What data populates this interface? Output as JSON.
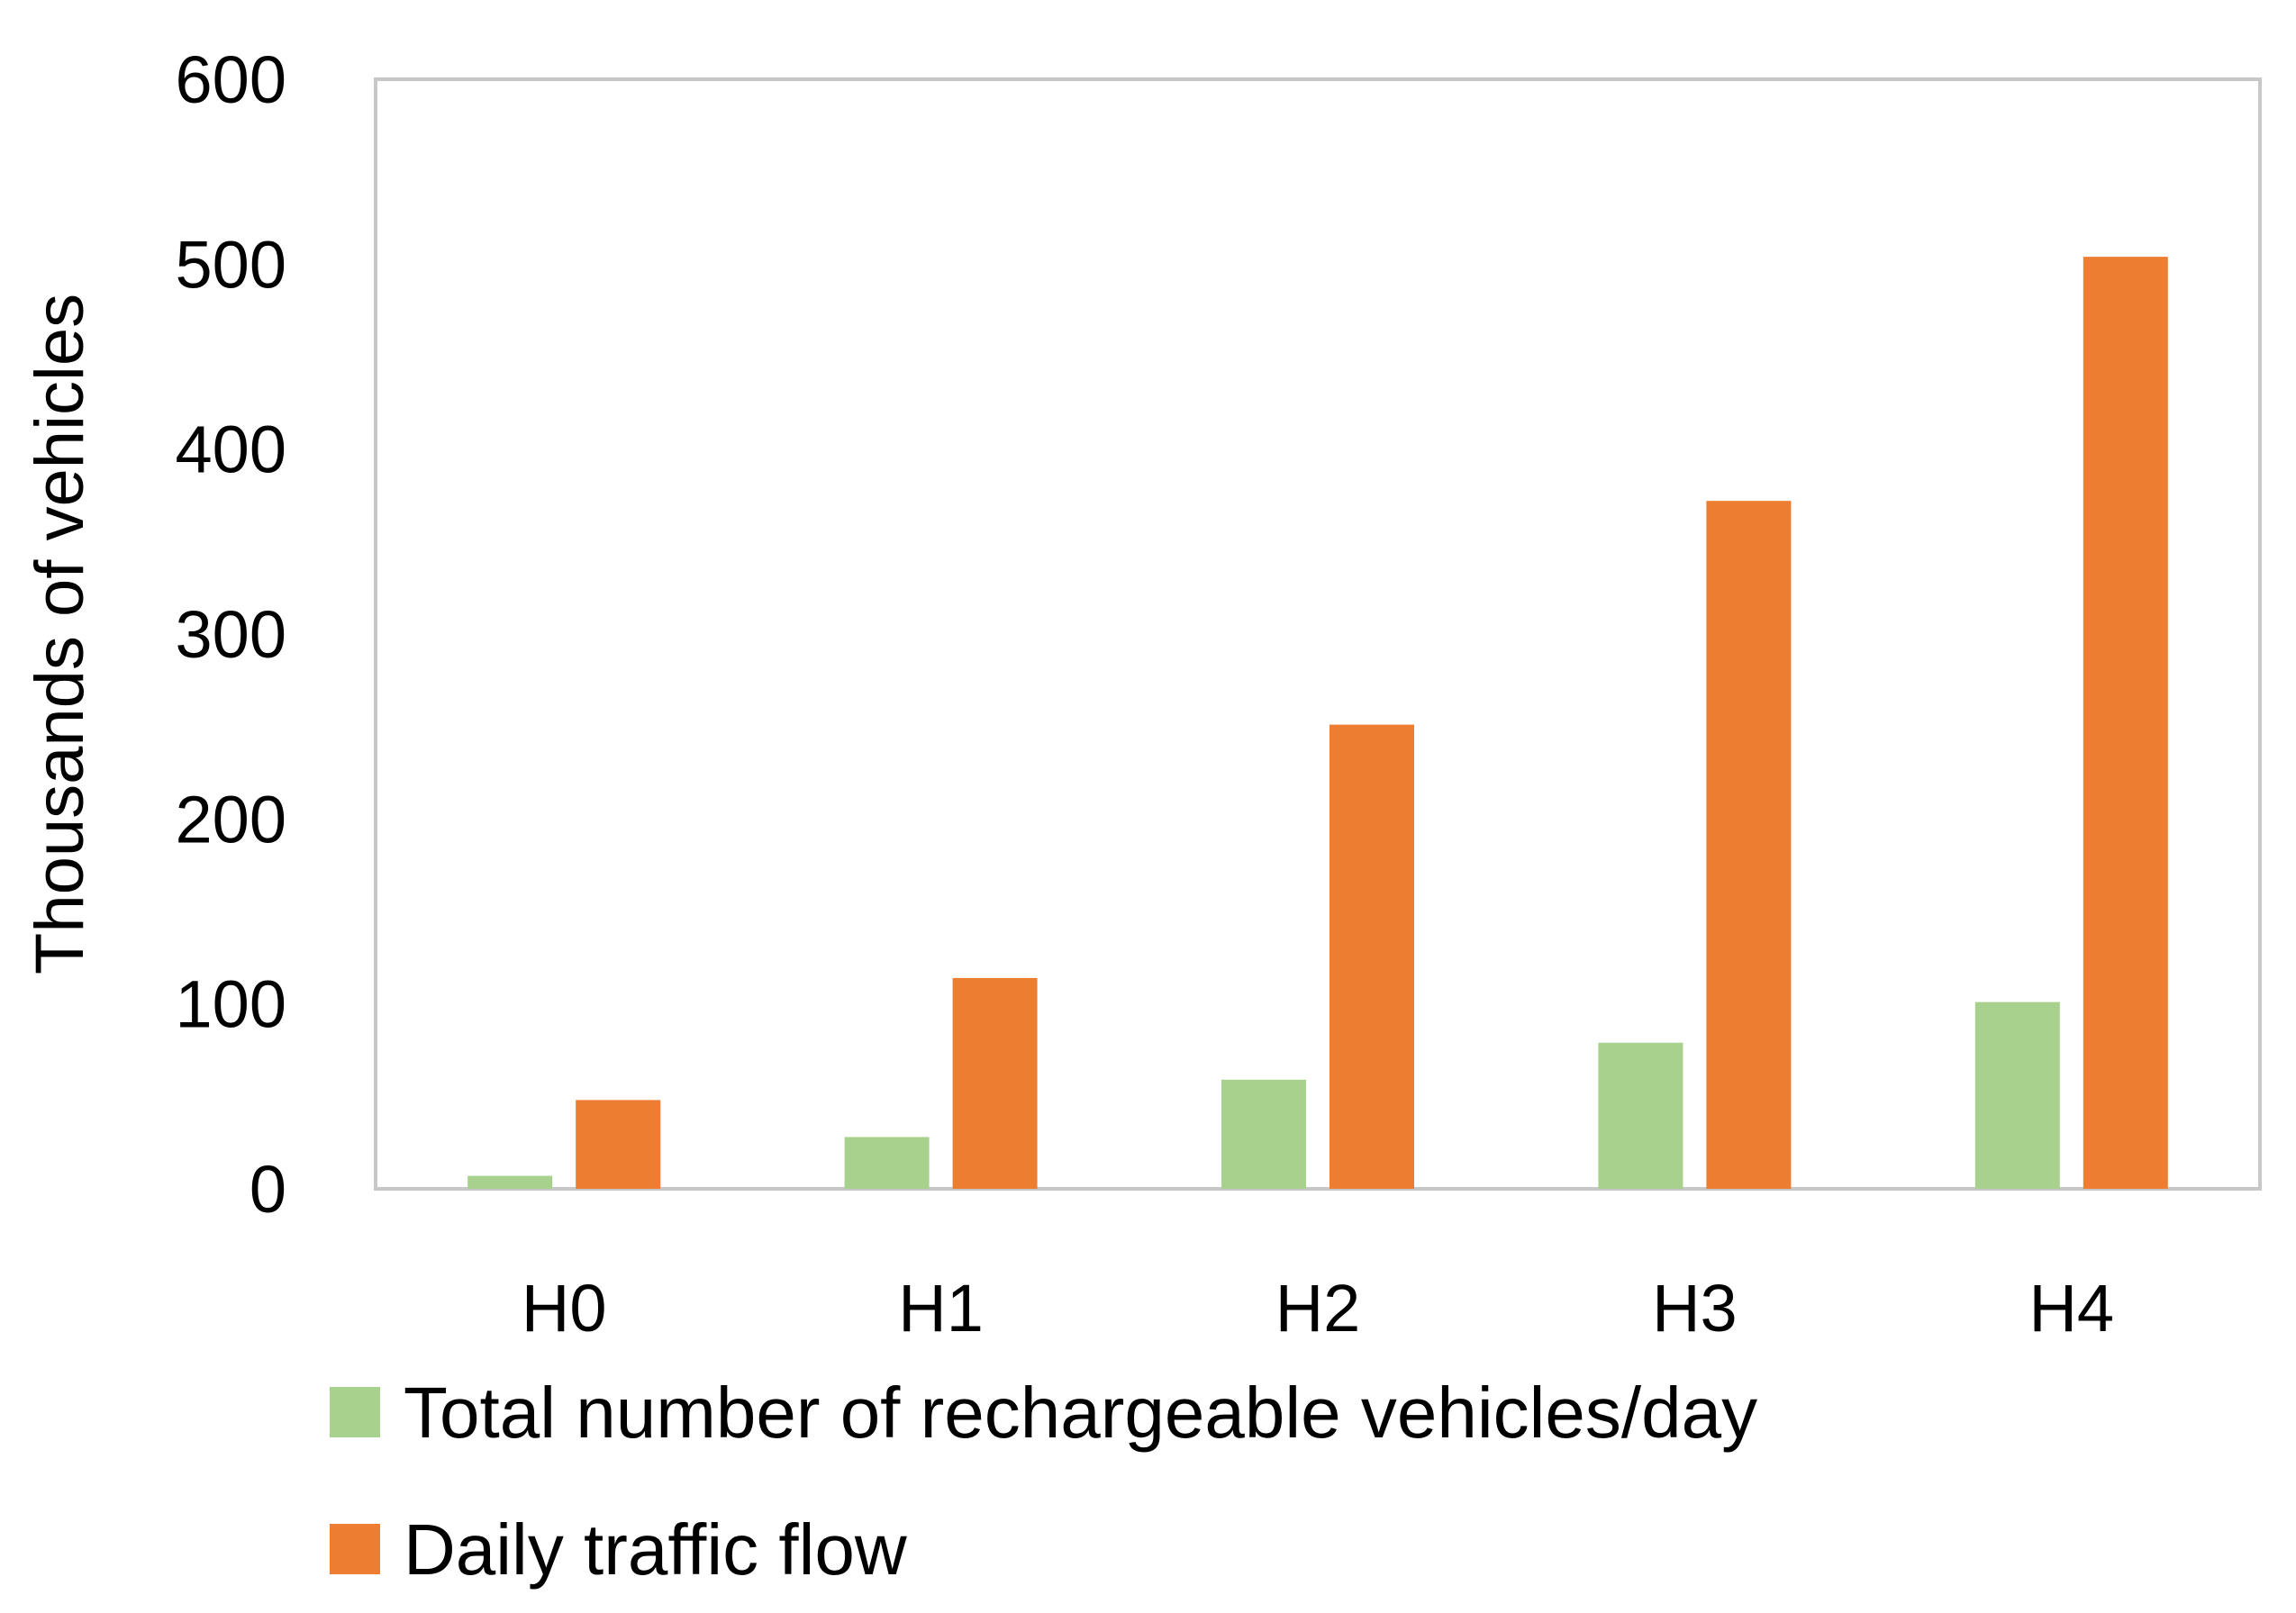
{
  "chart_data": {
    "type": "bar",
    "title": "",
    "xlabel": "",
    "ylabel": "Thousands of vehicles",
    "categories": [
      "H0",
      "H1",
      "H2",
      "H3",
      "H4"
    ],
    "series": [
      {
        "name": "Total number of rechargeable vehicles/day",
        "color": "#a9d18e",
        "values": [
          7,
          28,
          59,
          79,
          101
        ]
      },
      {
        "name": "Daily traffic flow",
        "color": "#ed7d31",
        "values": [
          48,
          114,
          251,
          372,
          504
        ]
      }
    ],
    "ylim": [
      0,
      600
    ],
    "yticks": [
      0,
      100,
      200,
      300,
      400,
      500,
      600
    ],
    "grid": false,
    "legend_position": "bottom"
  }
}
